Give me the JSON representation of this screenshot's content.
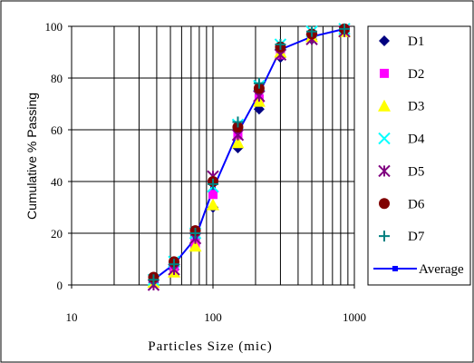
{
  "chart_data": {
    "type": "scatter",
    "xlabel": "Particles Size (mic)",
    "ylabel": "Cumulative % Passing",
    "xscale": "log",
    "xlim": [
      10,
      1000
    ],
    "ylim": [
      0,
      100
    ],
    "x_ticks": [
      "10",
      "100",
      "1000"
    ],
    "y_ticks": [
      "0",
      "20",
      "40",
      "60",
      "80",
      "100"
    ],
    "grid": true,
    "legend_position": "right",
    "x": [
      38,
      53,
      75,
      100,
      150,
      212,
      300,
      500,
      850
    ],
    "series": [
      {
        "name": "D1",
        "marker": "diamond",
        "color": "#000080",
        "values": [
          1,
          6,
          16,
          30,
          53,
          68,
          88,
          95,
          98
        ]
      },
      {
        "name": "D2",
        "marker": "square",
        "color": "#ff00ff",
        "values": [
          2,
          7,
          16,
          35,
          58,
          72,
          89,
          96,
          98
        ]
      },
      {
        "name": "D3",
        "marker": "triangle",
        "color": "#ffff00",
        "values": [
          1,
          5,
          15,
          31,
          55,
          71,
          90,
          96,
          98
        ]
      },
      {
        "name": "D4",
        "marker": "x",
        "color": "#00ffff",
        "values": [
          2,
          9,
          20,
          38,
          62,
          77,
          93,
          98,
          99
        ]
      },
      {
        "name": "D5",
        "marker": "star",
        "color": "#800080",
        "values": [
          0,
          6,
          18,
          42,
          58,
          73,
          89,
          95,
          98
        ]
      },
      {
        "name": "D6",
        "marker": "circle",
        "color": "#800000",
        "values": [
          3,
          9,
          21,
          40,
          61,
          76,
          92,
          97,
          99
        ]
      },
      {
        "name": "D7",
        "marker": "plus",
        "color": "#008080",
        "values": [
          2,
          8,
          20,
          39,
          63,
          78,
          93,
          98,
          99
        ]
      },
      {
        "name": "Average",
        "marker": "line",
        "color": "#0000ff",
        "values": [
          2,
          8,
          18,
          37,
          59,
          74,
          91,
          96,
          99
        ]
      }
    ]
  }
}
